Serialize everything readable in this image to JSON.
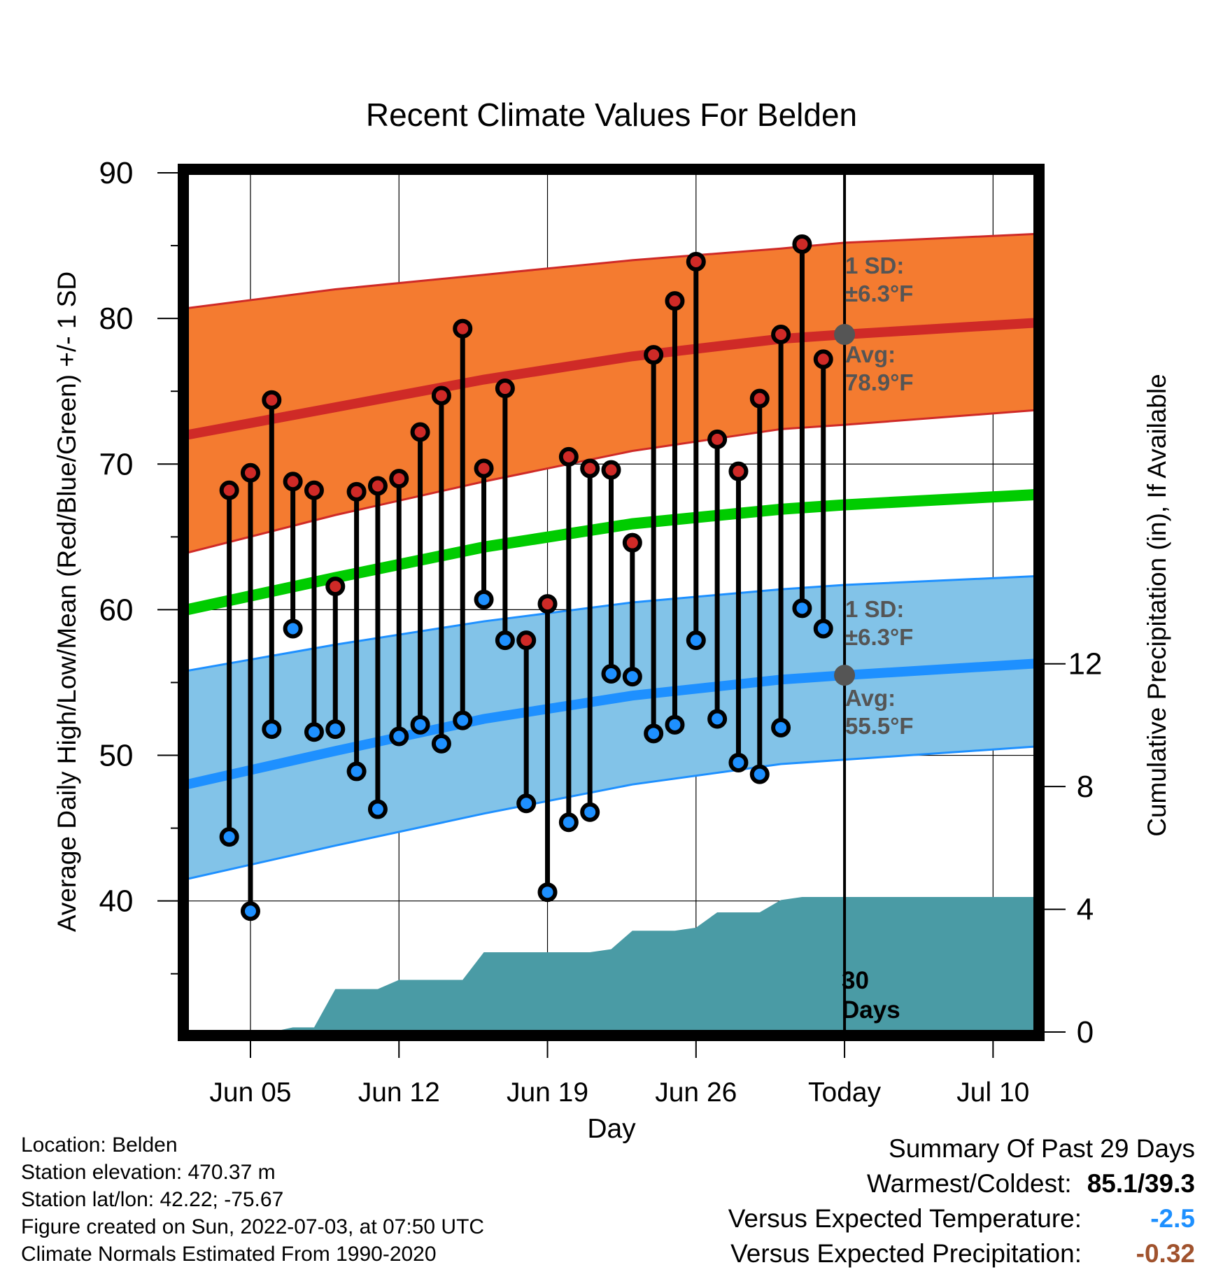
{
  "chart_data": {
    "type": "line",
    "title": "Recent Climate Values For Belden",
    "xlabel": "Day",
    "ylabel_left": "Average Daily High/Low/Mean (Red/Blue/Green) +/- 1 SD",
    "ylabel_right": "Cumulative Precipitation (in), If Available",
    "x_ticks": [
      {
        "date": "2022-06-05",
        "label": "Jun 05"
      },
      {
        "date": "2022-06-12",
        "label": "Jun 12"
      },
      {
        "date": "2022-06-19",
        "label": "Jun 19"
      },
      {
        "date": "2022-06-26",
        "label": "Jun 26"
      },
      {
        "date": "2022-07-03",
        "label": "Today"
      },
      {
        "date": "2022-07-10",
        "label": "Jul 10"
      }
    ],
    "xlim": [
      "2022-06-02",
      "2022-07-12"
    ],
    "ylim": [
      31,
      90
    ],
    "y_ticks": [
      40,
      50,
      60,
      70,
      80,
      90
    ],
    "y2lim": [
      0,
      28
    ],
    "y2_ticks": [
      0,
      4,
      8,
      12
    ],
    "grid": true,
    "colors": {
      "high_band": "#f47b30",
      "high_line": "#cf2a27",
      "low_band": "#82c3e8",
      "low_line": "#1e90ff",
      "mean_line": "#00cc00",
      "precip": "#4a9ba5",
      "high_marker": "#cf2a27",
      "low_marker": "#1e90ff",
      "today_marker": "#555555",
      "annotation": "#555555",
      "temp_departure": "#1e90ff",
      "precip_departure": "#a0522d"
    },
    "normals": {
      "dates": [
        "2022-06-02",
        "2022-06-09",
        "2022-06-16",
        "2022-06-23",
        "2022-06-30",
        "2022-07-03",
        "2022-07-12"
      ],
      "high_avg": [
        72.0,
        73.9,
        75.8,
        77.4,
        78.6,
        78.9,
        79.7
      ],
      "high_upper": [
        80.7,
        82.0,
        83.0,
        84.0,
        84.8,
        85.2,
        85.8
      ],
      "high_lower": [
        63.9,
        66.5,
        68.8,
        70.9,
        72.4,
        72.7,
        73.7
      ],
      "low_avg": [
        48.0,
        50.3,
        52.5,
        54.1,
        55.2,
        55.5,
        56.3
      ],
      "low_upper": [
        55.8,
        57.6,
        59.2,
        60.5,
        61.4,
        61.7,
        62.3
      ],
      "low_lower": [
        41.5,
        43.8,
        46.0,
        48.0,
        49.4,
        49.7,
        50.6
      ],
      "mean_avg": [
        60.0,
        62.2,
        64.3,
        65.9,
        66.9,
        67.2,
        67.9
      ]
    },
    "daily": {
      "dates": [
        "2022-06-04",
        "2022-06-05",
        "2022-06-06",
        "2022-06-07",
        "2022-06-08",
        "2022-06-09",
        "2022-06-10",
        "2022-06-11",
        "2022-06-12",
        "2022-06-13",
        "2022-06-14",
        "2022-06-15",
        "2022-06-16",
        "2022-06-17",
        "2022-06-18",
        "2022-06-19",
        "2022-06-20",
        "2022-06-21",
        "2022-06-22",
        "2022-06-23",
        "2022-06-24",
        "2022-06-25",
        "2022-06-26",
        "2022-06-27",
        "2022-06-28",
        "2022-06-29",
        "2022-06-30",
        "2022-07-01",
        "2022-07-02"
      ],
      "high": [
        68.2,
        69.4,
        74.4,
        68.8,
        68.2,
        61.6,
        68.1,
        68.5,
        69.0,
        72.2,
        74.7,
        79.3,
        69.7,
        75.2,
        57.9,
        60.4,
        70.5,
        69.7,
        69.6,
        64.6,
        77.5,
        81.2,
        83.9,
        71.7,
        69.5,
        74.5,
        78.9,
        85.1,
        77.2
      ],
      "low": [
        44.4,
        39.3,
        51.8,
        58.7,
        51.6,
        51.8,
        48.9,
        46.3,
        51.3,
        52.1,
        50.8,
        52.4,
        60.7,
        57.9,
        46.7,
        40.6,
        45.4,
        46.1,
        55.6,
        55.4,
        51.5,
        52.1,
        57.9,
        52.5,
        49.5,
        48.7,
        51.9,
        60.1,
        58.7
      ]
    },
    "precip_cumulative": {
      "dates": [
        "2022-06-02",
        "2022-06-05",
        "2022-06-06",
        "2022-06-07",
        "2022-06-08",
        "2022-06-09",
        "2022-06-10",
        "2022-06-11",
        "2022-06-12",
        "2022-06-13",
        "2022-06-14",
        "2022-06-15",
        "2022-06-16",
        "2022-06-17",
        "2022-06-18",
        "2022-06-19",
        "2022-06-20",
        "2022-06-21",
        "2022-06-22",
        "2022-06-23",
        "2022-06-24",
        "2022-06-25",
        "2022-06-26",
        "2022-06-27",
        "2022-06-28",
        "2022-06-29",
        "2022-06-30",
        "2022-07-01",
        "2022-07-02",
        "2022-07-12"
      ],
      "values": [
        0.0,
        0.0,
        0.0,
        0.15,
        0.15,
        1.4,
        1.4,
        1.4,
        1.7,
        1.7,
        1.7,
        1.7,
        2.6,
        2.6,
        2.6,
        2.6,
        2.6,
        2.6,
        2.7,
        3.3,
        3.3,
        3.3,
        3.4,
        3.9,
        3.9,
        3.9,
        4.3,
        4.4,
        4.4,
        4.4
      ]
    },
    "annotations": {
      "high_sd": "1 SD:\n±6.3°F",
      "high_avg": "Avg:\n78.9°F",
      "low_sd": "1 SD:\n±6.3°F",
      "low_avg": "Avg:\n55.5°F",
      "days": "30\nDays"
    }
  },
  "footer": {
    "location": "Location: Belden",
    "elevation": "Station elevation: 470.37 m",
    "latlon": "Station lat/lon: 42.22; -75.67",
    "created": "Figure created on Sun, 2022-07-03, at 07:50 UTC",
    "normals": "Climate Normals Estimated From 1990-2020"
  },
  "summary": {
    "title": "Summary Of Past 29 Days",
    "warmest_coldest_label": "Warmest/Coldest:",
    "warmest_coldest_value": "85.1/39.3",
    "temp_label": "Versus Expected Temperature:",
    "temp_value": "-2.5",
    "precip_label": "Versus Expected Precipitation:",
    "precip_value": "-0.32"
  }
}
